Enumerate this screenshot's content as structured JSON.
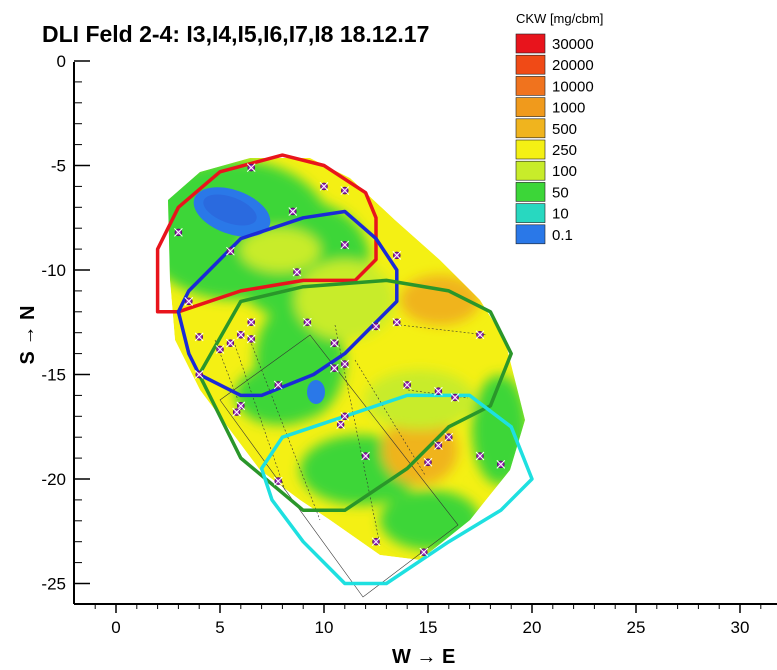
{
  "chart_data": {
    "type": "contour",
    "title": "DLI Feld 2-4: I3,I4,I5,I6,I7,I8 18.12.17",
    "xlabel": "W → E",
    "ylabel": "S → N",
    "xlim": [
      -2,
      31
    ],
    "ylim": [
      -26,
      0
    ],
    "xticks": [
      "0",
      "5",
      "10",
      "15",
      "20",
      "25",
      "30"
    ],
    "yticks": [
      "0",
      "-5",
      "-10",
      "-15",
      "-20",
      "-25"
    ],
    "legend": {
      "title": "CKW [mg/cbm]",
      "placement": "top-right",
      "levels": [
        "30000",
        "20000",
        "10000",
        "1000",
        "500",
        "250",
        "100",
        "50",
        "10",
        "0.1"
      ],
      "colors": [
        "#e8141c",
        "#f04a16",
        "#f0731e",
        "#f09a1c",
        "#f0b41e",
        "#f4f014",
        "#c8ec2a",
        "#3cd638",
        "#28d8c0",
        "#2a78e8"
      ]
    },
    "zones": [
      {
        "color": "#e8141c",
        "points": [
          [
            2,
            -12
          ],
          [
            2,
            -9
          ],
          [
            3,
            -7
          ],
          [
            5,
            -5.3
          ],
          [
            8,
            -4.5
          ],
          [
            10,
            -5
          ],
          [
            12,
            -6.3
          ],
          [
            12.5,
            -7.5
          ],
          [
            12.5,
            -9.5
          ],
          [
            11.5,
            -10.5
          ],
          [
            9,
            -10.5
          ],
          [
            6,
            -11
          ],
          [
            3,
            -12
          ]
        ]
      },
      {
        "color": "#1a2ad6",
        "points": [
          [
            3,
            -12
          ],
          [
            3.5,
            -11
          ],
          [
            6,
            -8.5
          ],
          [
            9,
            -7.5
          ],
          [
            11,
            -7.2
          ],
          [
            12.5,
            -8.5
          ],
          [
            13.5,
            -10
          ],
          [
            13.5,
            -11.5
          ],
          [
            11,
            -14
          ],
          [
            9.5,
            -15
          ],
          [
            7,
            -16
          ],
          [
            6,
            -16
          ],
          [
            4,
            -15
          ],
          [
            3.5,
            -14
          ]
        ]
      },
      {
        "color": "#2a962a",
        "points": [
          [
            4,
            -15
          ],
          [
            6,
            -11.5
          ],
          [
            9,
            -10.8
          ],
          [
            13,
            -10.5
          ],
          [
            16,
            -11
          ],
          [
            18,
            -12
          ],
          [
            19,
            -14
          ],
          [
            18,
            -16.5
          ],
          [
            16,
            -17.5
          ],
          [
            14,
            -19.5
          ],
          [
            11,
            -21.5
          ],
          [
            9,
            -21.5
          ],
          [
            6,
            -19
          ],
          [
            4.5,
            -16
          ]
        ]
      },
      {
        "color": "#1ee0e0",
        "points": [
          [
            7,
            -19.5
          ],
          [
            8,
            -18
          ],
          [
            11,
            -17
          ],
          [
            14,
            -16
          ],
          [
            17,
            -16
          ],
          [
            19,
            -17.5
          ],
          [
            20,
            -20
          ],
          [
            18.5,
            -21.5
          ],
          [
            16,
            -23
          ],
          [
            13,
            -25
          ],
          [
            11,
            -25
          ],
          [
            9,
            -23
          ],
          [
            7.5,
            -21
          ]
        ]
      }
    ],
    "points": [
      {
        "x": 6.5,
        "y": -5.1
      },
      {
        "x": 10,
        "y": -6
      },
      {
        "x": 11,
        "y": -6.2
      },
      {
        "x": 8.5,
        "y": -7.2
      },
      {
        "x": 3,
        "y": -8.2
      },
      {
        "x": 5.5,
        "y": -9.1
      },
      {
        "x": 11,
        "y": -8.8
      },
      {
        "x": 13.5,
        "y": -9.3
      },
      {
        "x": 8.7,
        "y": -10.1
      },
      {
        "x": 3.5,
        "y": -11.5
      },
      {
        "x": 12.5,
        "y": -12.7
      },
      {
        "x": 13.5,
        "y": -12.5
      },
      {
        "x": 17.5,
        "y": -13.1
      },
      {
        "x": 4,
        "y": -13.2
      },
      {
        "x": 5.5,
        "y": -13.5
      },
      {
        "x": 6,
        "y": -13.1
      },
      {
        "x": 6.5,
        "y": -13.3
      },
      {
        "x": 6.5,
        "y": -12.5
      },
      {
        "x": 5,
        "y": -13.8
      },
      {
        "x": 9.2,
        "y": -12.5
      },
      {
        "x": 10.5,
        "y": -13.5
      },
      {
        "x": 11,
        "y": -14.5
      },
      {
        "x": 10.5,
        "y": -14.7
      },
      {
        "x": 7.8,
        "y": -15.5
      },
      {
        "x": 4,
        "y": -15
      },
      {
        "x": 14,
        "y": -15.5
      },
      {
        "x": 15.5,
        "y": -15.8
      },
      {
        "x": 16.3,
        "y": -16.1
      },
      {
        "x": 6,
        "y": -16.5
      },
      {
        "x": 5.8,
        "y": -16.8
      },
      {
        "x": 11,
        "y": -17
      },
      {
        "x": 10.8,
        "y": -17.4
      },
      {
        "x": 16,
        "y": -18
      },
      {
        "x": 15.5,
        "y": -18.4
      },
      {
        "x": 12,
        "y": -18.9
      },
      {
        "x": 15,
        "y": -19.2
      },
      {
        "x": 17.5,
        "y": -18.9
      },
      {
        "x": 18.5,
        "y": -19.3
      },
      {
        "x": 7.8,
        "y": -20.1
      },
      {
        "x": 12.5,
        "y": -23
      },
      {
        "x": 14.8,
        "y": -23.5
      }
    ]
  }
}
